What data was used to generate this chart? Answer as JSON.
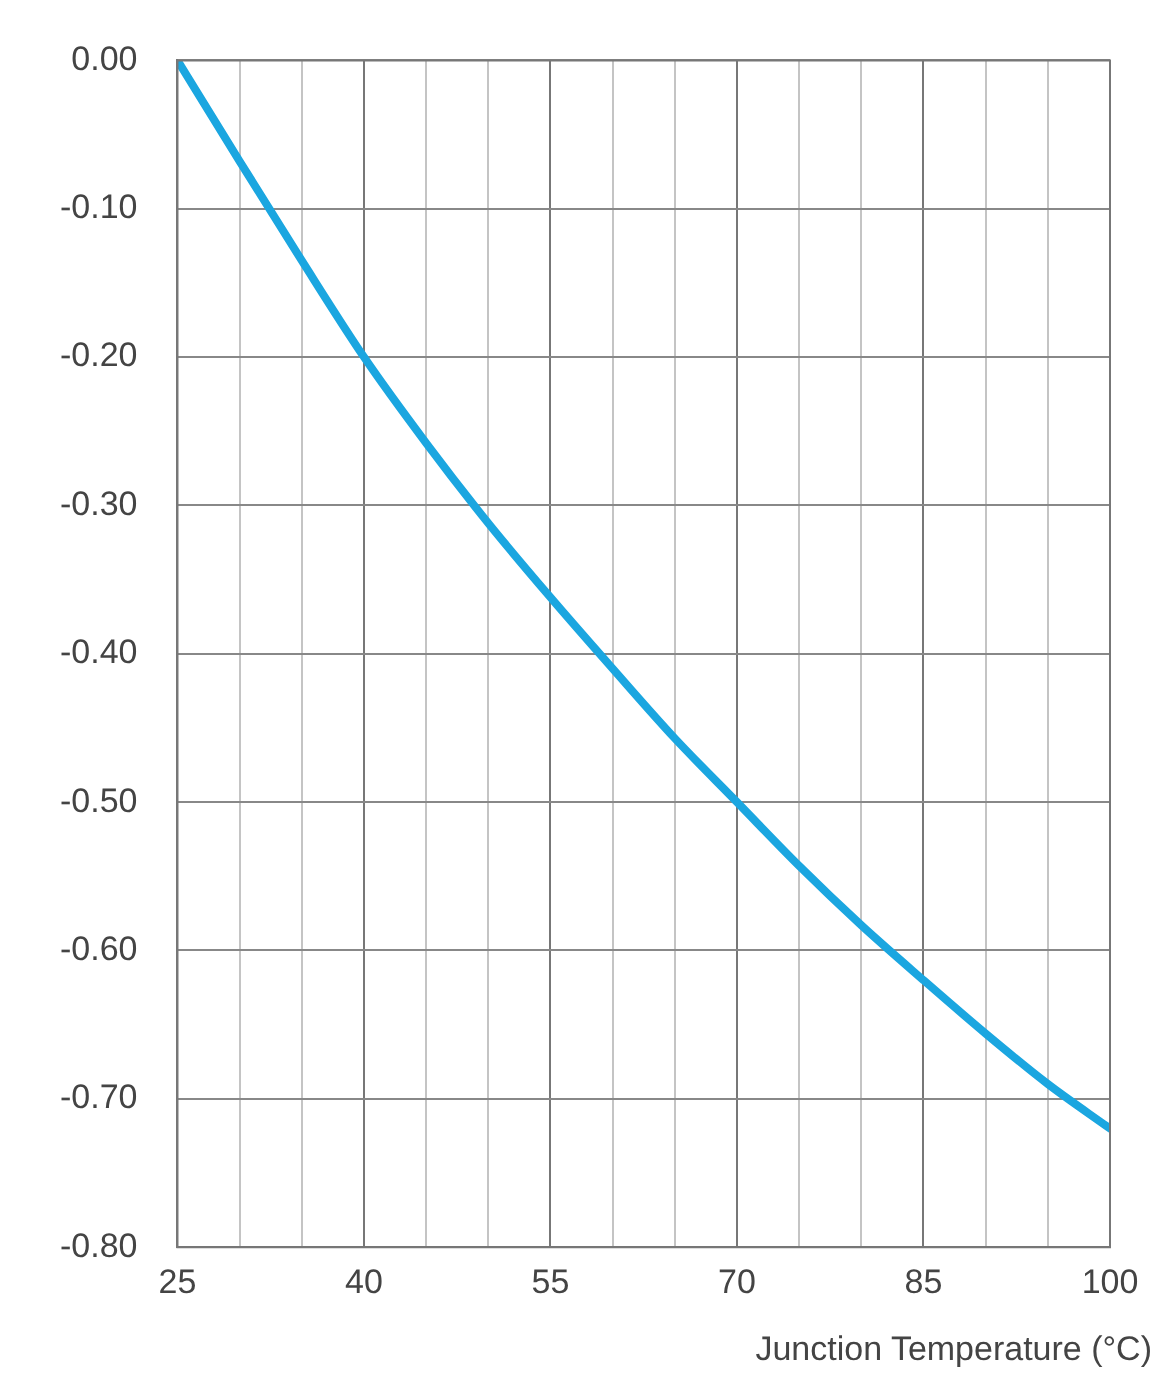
{
  "chart_data": {
    "type": "line",
    "xlabel": "Junction Temperature (°C)",
    "x": [
      25,
      30,
      35,
      40,
      45,
      50,
      55,
      60,
      65,
      70,
      75,
      80,
      85,
      90,
      95,
      100
    ],
    "series": [
      {
        "color": "#1ba6e0",
        "values": [
          0,
          -0.068,
          -0.135,
          -0.2,
          -0.258,
          -0.312,
          -0.362,
          -0.41,
          -0.457,
          -0.5,
          -0.543,
          -0.583,
          -0.62,
          -0.656,
          -0.69,
          -0.72
        ]
      }
    ],
    "xlim": [
      25,
      100
    ],
    "xticks": [
      25,
      {
        "value": 30,
        "label": null
      },
      {
        "value": 35,
        "label": null
      },
      40,
      {
        "value": 45,
        "label": null
      },
      {
        "value": 50,
        "label": null
      },
      55,
      {
        "value": 60,
        "label": null
      },
      {
        "value": 65,
        "label": null
      },
      70,
      {
        "value": 75,
        "label": null
      },
      {
        "value": 80,
        "label": null
      },
      85,
      {
        "value": 90,
        "label": null
      },
      {
        "value": 95,
        "label": null
      },
      100
    ],
    "ylim": [
      -0.8,
      0
    ],
    "yticks": [
      {
        "value": 0,
        "label": "0.00"
      },
      {
        "value": -0.1,
        "label": "-0.10"
      },
      {
        "value": -0.2,
        "label": "-0.20"
      },
      {
        "value": -0.3,
        "label": "-0.30"
      },
      {
        "value": -0.4,
        "label": "-0.40"
      },
      {
        "value": -0.5,
        "label": "-0.50"
      },
      {
        "value": -0.6,
        "label": "-0.60"
      },
      {
        "value": -0.7,
        "label": "-0.70"
      },
      {
        "value": -0.8,
        "label": "-0.80"
      }
    ],
    "grid": true,
    "marker": "none",
    "line_style": "solid"
  }
}
